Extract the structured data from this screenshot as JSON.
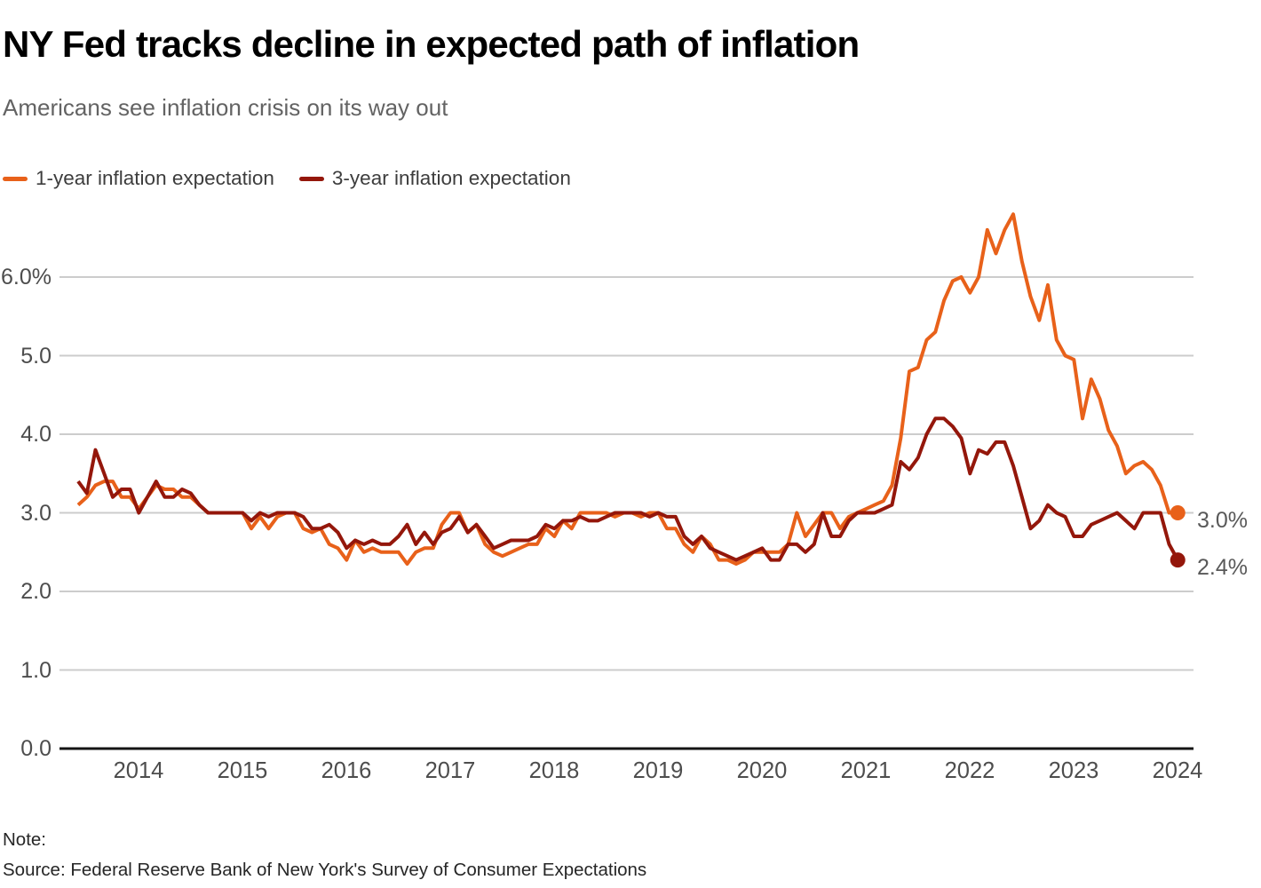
{
  "header": {
    "title": "NY Fed tracks decline in expected path of inflation",
    "subtitle": "Americans see inflation crisis on its way out"
  },
  "legend": [
    {
      "label": "1-year inflation expectation",
      "color": "#E8611A"
    },
    {
      "label": "3-year inflation expectation",
      "color": "#94170B"
    }
  ],
  "chart_data": {
    "type": "line",
    "frequency": "monthly",
    "x_start": "2013-06",
    "x_end": "2024-01",
    "x_tick_labels": [
      "2014",
      "2015",
      "2016",
      "2017",
      "2018",
      "2019",
      "2020",
      "2021",
      "2022",
      "2023",
      "2024"
    ],
    "y_ticks": [
      {
        "value": 0,
        "label": "0.0"
      },
      {
        "value": 1,
        "label": "1.0"
      },
      {
        "value": 2,
        "label": "2.0"
      },
      {
        "value": 3,
        "label": "3.0"
      },
      {
        "value": 4,
        "label": "4.0"
      },
      {
        "value": 5,
        "label": "5.0"
      },
      {
        "value": 6,
        "label": "6.0%"
      }
    ],
    "ylim": [
      0,
      7.0
    ],
    "grid": "horizontal",
    "legend_position": "top-left",
    "series": [
      {
        "name": "1-year inflation expectation",
        "color": "#E8611A",
        "end_label": "3.0%",
        "end_value": 3.0,
        "values": [
          3.1,
          3.2,
          3.35,
          3.4,
          3.4,
          3.2,
          3.2,
          3.05,
          3.2,
          3.35,
          3.3,
          3.3,
          3.2,
          3.2,
          3.1,
          3.0,
          3.0,
          3.0,
          3.0,
          3.0,
          2.8,
          2.95,
          2.8,
          2.95,
          3.0,
          3.0,
          2.8,
          2.75,
          2.8,
          2.6,
          2.55,
          2.4,
          2.65,
          2.5,
          2.55,
          2.5,
          2.5,
          2.5,
          2.35,
          2.5,
          2.55,
          2.55,
          2.85,
          3.0,
          3.0,
          2.75,
          2.85,
          2.6,
          2.5,
          2.45,
          2.5,
          2.55,
          2.6,
          2.6,
          2.8,
          2.7,
          2.9,
          2.8,
          3.0,
          3.0,
          3.0,
          3.0,
          2.95,
          3.0,
          3.0,
          2.95,
          3.0,
          3.0,
          2.8,
          2.8,
          2.6,
          2.5,
          2.7,
          2.6,
          2.4,
          2.4,
          2.35,
          2.4,
          2.5,
          2.5,
          2.5,
          2.5,
          2.6,
          3.0,
          2.7,
          2.85,
          3.0,
          3.0,
          2.8,
          2.95,
          3.0,
          3.05,
          3.1,
          3.15,
          3.35,
          3.95,
          4.8,
          4.85,
          5.2,
          5.3,
          5.7,
          5.95,
          6.0,
          5.8,
          6.0,
          6.6,
          6.3,
          6.6,
          6.8,
          6.2,
          5.75,
          5.45,
          5.9,
          5.2,
          5.0,
          4.95,
          4.2,
          4.7,
          4.45,
          4.05,
          3.85,
          3.5,
          3.6,
          3.65,
          3.55,
          3.35,
          3.0,
          3.0
        ]
      },
      {
        "name": "3-year inflation expectation",
        "color": "#94170B",
        "end_label": "2.4%",
        "end_value": 2.4,
        "values": [
          3.4,
          3.25,
          3.8,
          3.5,
          3.2,
          3.3,
          3.3,
          3.0,
          3.2,
          3.4,
          3.2,
          3.2,
          3.3,
          3.25,
          3.1,
          3.0,
          3.0,
          3.0,
          3.0,
          3.0,
          2.9,
          3.0,
          2.95,
          3.0,
          3.0,
          3.0,
          2.95,
          2.8,
          2.8,
          2.85,
          2.75,
          2.55,
          2.65,
          2.6,
          2.65,
          2.6,
          2.6,
          2.7,
          2.85,
          2.6,
          2.75,
          2.6,
          2.75,
          2.8,
          2.95,
          2.75,
          2.85,
          2.7,
          2.55,
          2.6,
          2.65,
          2.65,
          2.65,
          2.7,
          2.85,
          2.8,
          2.9,
          2.9,
          2.95,
          2.9,
          2.9,
          2.95,
          3.0,
          3.0,
          3.0,
          3.0,
          2.95,
          3.0,
          2.95,
          2.95,
          2.7,
          2.6,
          2.7,
          2.55,
          2.5,
          2.45,
          2.4,
          2.45,
          2.5,
          2.55,
          2.4,
          2.4,
          2.6,
          2.6,
          2.5,
          2.6,
          3.0,
          2.7,
          2.7,
          2.9,
          3.0,
          3.0,
          3.0,
          3.05,
          3.1,
          3.65,
          3.55,
          3.7,
          4.0,
          4.2,
          4.2,
          4.1,
          3.95,
          3.5,
          3.8,
          3.75,
          3.9,
          3.9,
          3.6,
          3.2,
          2.8,
          2.9,
          3.1,
          3.0,
          2.95,
          2.7,
          2.7,
          2.85,
          2.9,
          2.95,
          3.0,
          2.9,
          2.8,
          3.0,
          3.0,
          3.0,
          2.6,
          2.4
        ]
      }
    ],
    "colors": {
      "gridline": "#cccccc",
      "baseline": "#141414",
      "axis_text": "#4d4d4d",
      "end_label_text": "#595959"
    }
  },
  "footer": {
    "note_label": "Note:",
    "source": "Source: Federal Reserve Bank of New York's Survey of Consumer Expectations"
  }
}
